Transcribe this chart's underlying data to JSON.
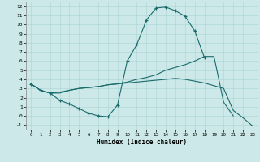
{
  "background_color": "#cce8e8",
  "line_color": "#1a6b6b",
  "xlabel": "Humidex (Indice chaleur)",
  "xlim": [
    -0.5,
    23.5
  ],
  "ylim": [
    -1.5,
    12.5
  ],
  "xticks": [
    0,
    1,
    2,
    3,
    4,
    5,
    6,
    7,
    8,
    9,
    10,
    11,
    12,
    13,
    14,
    15,
    16,
    17,
    18,
    19,
    20,
    21,
    22,
    23
  ],
  "yticks": [
    -1,
    0,
    1,
    2,
    3,
    4,
    5,
    6,
    7,
    8,
    9,
    10,
    11,
    12
  ],
  "main_x": [
    0,
    1,
    2,
    3,
    4,
    5,
    6,
    7,
    8,
    9,
    10,
    11,
    12,
    13,
    14,
    15,
    16,
    17,
    18
  ],
  "main_y": [
    3.5,
    2.8,
    2.5,
    1.7,
    1.3,
    0.8,
    0.3,
    0.0,
    -0.1,
    1.2,
    6.0,
    7.8,
    10.5,
    11.8,
    11.9,
    11.5,
    10.9,
    9.3,
    6.4
  ],
  "upper_x": [
    0,
    1,
    2,
    3,
    4,
    5,
    6,
    7,
    8,
    9,
    10,
    11,
    12,
    13,
    14,
    15,
    16,
    17,
    18,
    19,
    20,
    21
  ],
  "upper_y": [
    3.5,
    2.8,
    2.5,
    2.6,
    2.8,
    3.0,
    3.1,
    3.2,
    3.4,
    3.5,
    3.7,
    4.0,
    4.2,
    4.5,
    5.0,
    5.3,
    5.6,
    6.0,
    6.5,
    6.5,
    1.5,
    0.0
  ],
  "lower_x": [
    0,
    1,
    2,
    3,
    4,
    5,
    6,
    7,
    8,
    9,
    10,
    11,
    12,
    13,
    14,
    15,
    16,
    17,
    18,
    19,
    20,
    21,
    22,
    23
  ],
  "lower_y": [
    3.5,
    2.8,
    2.5,
    2.5,
    2.8,
    3.0,
    3.1,
    3.2,
    3.4,
    3.5,
    3.6,
    3.7,
    3.8,
    3.9,
    4.0,
    4.1,
    4.0,
    3.8,
    3.6,
    3.3,
    3.0,
    0.6,
    -0.2,
    -1.1
  ]
}
